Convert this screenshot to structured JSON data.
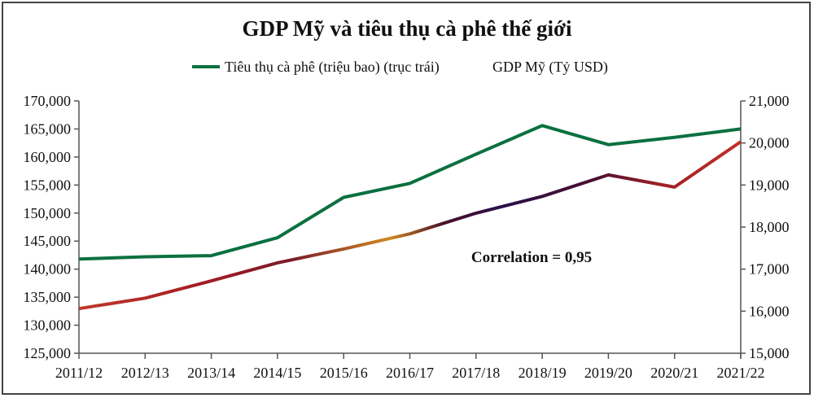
{
  "chart_data": {
    "type": "line",
    "title": "GDP Mỹ và tiêu thụ cà phê thế giới",
    "categories": [
      "2011/12",
      "2012/13",
      "2013/14",
      "2014/15",
      "2015/16",
      "2016/17",
      "2017/18",
      "2018/19",
      "2019/20",
      "2020/21",
      "2021/22"
    ],
    "series": [
      {
        "name": "Tiêu thụ cà phê (triệu bao) (trục trái)",
        "axis": "left",
        "color": "#0b7040",
        "values": [
          141800,
          142200,
          142400,
          145600,
          152800,
          155300,
          160500,
          165600,
          162200,
          163500,
          165000
        ]
      },
      {
        "name": "GDP Mỹ (Tỷ USD)",
        "axis": "right",
        "color": "#b3211f",
        "values": [
          16060,
          16310,
          16720,
          17150,
          17480,
          17840,
          18330,
          18730,
          19240,
          18950,
          20030
        ]
      }
    ],
    "left_axis": {
      "ylim": [
        125000,
        170000
      ],
      "ticks": [
        "125,000",
        "130,000",
        "135,000",
        "140,000",
        "145,000",
        "150,000",
        "155,000",
        "160,000",
        "165,000",
        "170,000"
      ]
    },
    "right_axis": {
      "ylim": [
        15000,
        21000
      ],
      "ticks": [
        "15,000",
        "16,000",
        "17,000",
        "18,000",
        "19,000",
        "20,000",
        "21,000"
      ]
    },
    "annotation": "Correlation = 0,95",
    "legend_position": "top",
    "grid": false,
    "xlabel": "",
    "ylabel": ""
  }
}
